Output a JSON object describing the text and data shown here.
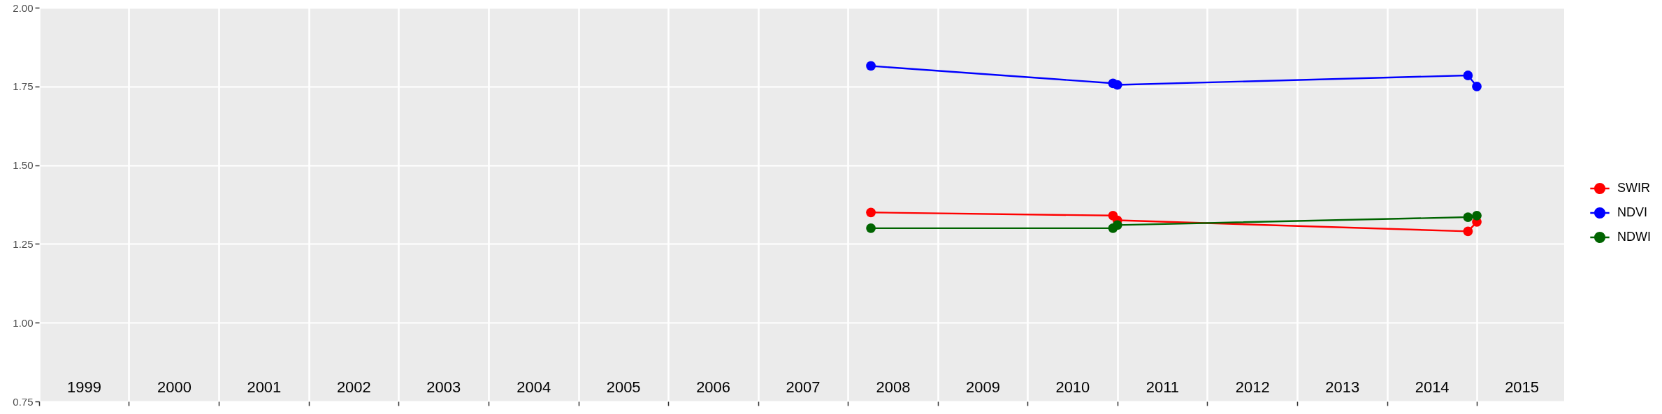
{
  "chart_data": {
    "type": "line",
    "x": [
      "2008-04-04",
      "2010-12-14",
      "2011-01-01",
      "2014-11-26",
      "2015-01-01"
    ],
    "series": [
      {
        "name": "SWIR",
        "color": "#ff0000",
        "values": [
          1.35,
          1.34,
          1.325,
          1.29,
          1.32
        ]
      },
      {
        "name": "NDVI",
        "color": "#0000ff",
        "values": [
          1.815,
          1.76,
          1.755,
          1.785,
          1.75
        ]
      },
      {
        "name": "NDWI",
        "color": "#006400",
        "values": [
          1.3,
          1.3,
          1.31,
          1.335,
          1.34
        ]
      }
    ],
    "xlim": [
      "1999-01-01",
      "2015-12-22"
    ],
    "xticks": [
      {
        "value": "1999",
        "label": null
      },
      {
        "value": "1999-07-02",
        "label": "1999"
      },
      {
        "value": "2000",
        "label": null
      },
      {
        "value": "2000-07-02",
        "label": "2000"
      },
      {
        "value": "2001",
        "label": null
      },
      {
        "value": "2001-07-02",
        "label": "2001"
      },
      {
        "value": "2002",
        "label": null
      },
      {
        "value": "2002-07-02",
        "label": "2002"
      },
      {
        "value": "2003",
        "label": null
      },
      {
        "value": "2003-07-02",
        "label": "2003"
      },
      {
        "value": "2004",
        "label": null
      },
      {
        "value": "2004-07-02",
        "label": "2004"
      },
      {
        "value": "2005",
        "label": null
      },
      {
        "value": "2005-07-02",
        "label": "2005"
      },
      {
        "value": "2006",
        "label": null
      },
      {
        "value": "2006-07-02",
        "label": "2006"
      },
      {
        "value": "2007",
        "label": null
      },
      {
        "value": "2007-07-02",
        "label": "2007"
      },
      {
        "value": "2008",
        "label": null
      },
      {
        "value": "2008-07-02",
        "label": "2008"
      },
      {
        "value": "2009",
        "label": null
      },
      {
        "value": "2009-07-02",
        "label": "2009"
      },
      {
        "value": "2010",
        "label": null
      },
      {
        "value": "2010-07-02",
        "label": "2010"
      },
      {
        "value": "2011",
        "label": null
      },
      {
        "value": "2011-07-02",
        "label": "2011"
      },
      {
        "value": "2012",
        "label": null
      },
      {
        "value": "2012-07-02",
        "label": "2012"
      },
      {
        "value": "2013",
        "label": null
      },
      {
        "value": "2013-07-02",
        "label": "2013"
      },
      {
        "value": "2014",
        "label": null
      },
      {
        "value": "2014-07-02",
        "label": "2014"
      },
      {
        "value": "2015",
        "label": null
      },
      {
        "value": "2015-07-02",
        "label": "2015"
      }
    ],
    "ylim": [
      0.75,
      2
    ],
    "yticks": [
      {
        "value": 0.75,
        "label": "0.75"
      },
      {
        "value": 1,
        "label": "1.00"
      },
      {
        "value": 1.25,
        "label": "1.25"
      },
      {
        "value": 1.5,
        "label": "1.50"
      },
      {
        "value": 1.75,
        "label": "1.75"
      },
      {
        "value": 2,
        "label": "2.00"
      }
    ],
    "grid": true,
    "legend": "right",
    "marker": "circle",
    "line_style": "solid"
  }
}
